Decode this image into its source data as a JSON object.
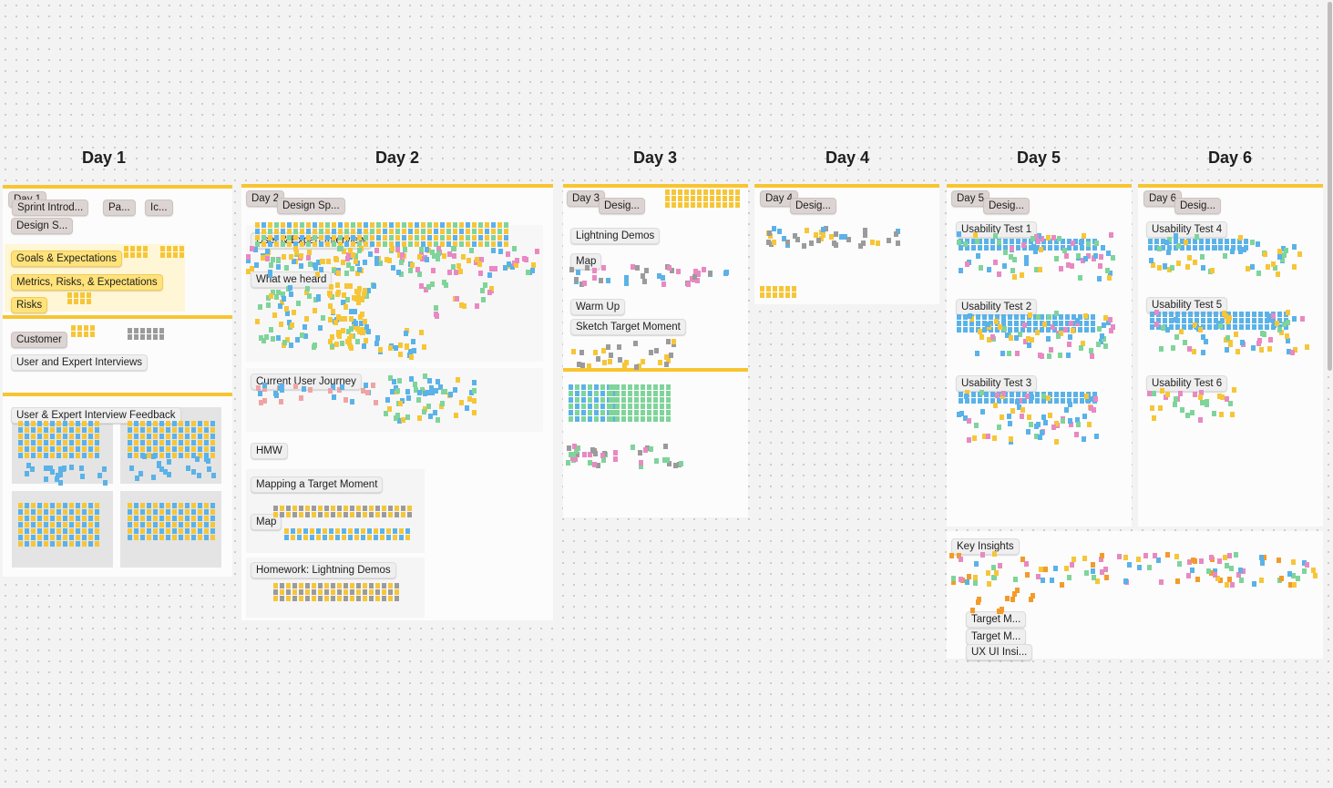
{
  "days": [
    "Day 1",
    "Day 2",
    "Day 3",
    "Day 4",
    "Day 5",
    "Day 6"
  ],
  "day1": {
    "tag": "Day 1",
    "sections": [
      "Sprint Introd...",
      "Pa...",
      "Ic...",
      "Design S...",
      "Goals & Expectations",
      "Metrics, Risks, & Expectations",
      "Risks",
      "Customer",
      "User and Expert Interviews",
      "User & Expert Interview Feedback"
    ]
  },
  "day2": {
    "tag": "Day 2",
    "sections": [
      "Design Sp...",
      "User & Expert Interview",
      "What we heard",
      "Current User Journey",
      "HMW",
      "Mapping a Target Moment",
      "Map",
      "Homework: Lightning Demos"
    ]
  },
  "day3": {
    "tag": "Day 3",
    "sections": [
      "Desig...",
      "Lightning Demos",
      "Map",
      "Warm Up",
      "Sketch Target Moment"
    ]
  },
  "day4": {
    "tag": "Day 4",
    "sections": [
      "Desig..."
    ]
  },
  "day5": {
    "tag": "Day 5",
    "sections": [
      "Desig...",
      "Usability Test 1",
      "Usability Test 2",
      "Usability Test 3"
    ]
  },
  "day6": {
    "tag": "Day 6",
    "sections": [
      "Desig...",
      "Usability Test 4",
      "Usability Test 5",
      "Usability Test 6"
    ]
  },
  "insights": {
    "sections": [
      "Key Insights",
      "Target M...",
      "Target M...",
      "UX UI Insi..."
    ]
  },
  "colors": {
    "accent": "#f7c531",
    "sticky_yellow": "#f6c638",
    "sticky_blue": "#5ab2e8",
    "sticky_green": "#7fd49a",
    "sticky_pink": "#e889c2",
    "sticky_orange": "#f39b2a"
  }
}
